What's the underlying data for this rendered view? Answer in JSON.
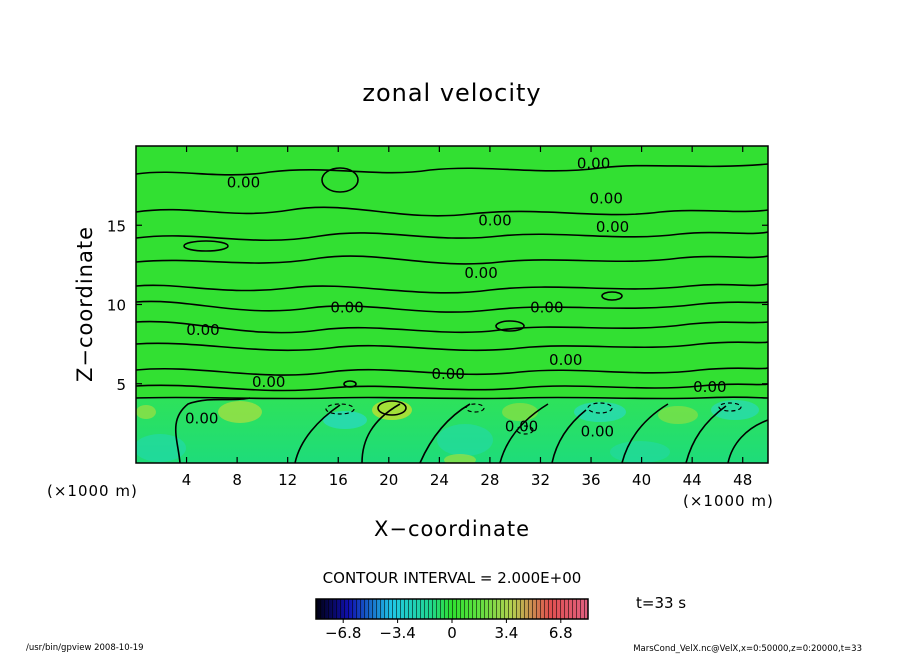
{
  "chart_data": {
    "type": "heatmap",
    "title": "zonal velocity",
    "xlabel": "X−coordinate",
    "ylabel": "Z−coordinate",
    "x_unit": "(×1000 m)",
    "y_unit": "(×1000 m)",
    "xlim": [
      0,
      50
    ],
    "ylim": [
      0,
      20
    ],
    "x_ticks": [
      4,
      8,
      12,
      16,
      20,
      24,
      28,
      32,
      36,
      40,
      44,
      48
    ],
    "y_ticks": [
      5,
      10,
      15
    ],
    "contour_interval": "CONTOUR INTERVAL = 2.000E+00",
    "time_label": "t=33 s",
    "colorbar": {
      "ticks": [
        "−6.8",
        "−3.4",
        "0",
        "3.4",
        "6.8"
      ],
      "range": [
        -6.8,
        6.8
      ]
    },
    "contour_labels": [
      {
        "x": 8.5,
        "z": 17.7,
        "text": "0.00"
      },
      {
        "x": 36.2,
        "z": 18.9,
        "text": "0.00"
      },
      {
        "x": 37.2,
        "z": 16.7,
        "text": "0.00"
      },
      {
        "x": 28.4,
        "z": 15.3,
        "text": "0.00"
      },
      {
        "x": 37.7,
        "z": 14.9,
        "text": "0.00"
      },
      {
        "x": 27.3,
        "z": 12.0,
        "text": "0.00"
      },
      {
        "x": 16.7,
        "z": 9.8,
        "text": "0.00"
      },
      {
        "x": 32.5,
        "z": 9.8,
        "text": "0.00"
      },
      {
        "x": 5.3,
        "z": 8.4,
        "text": "0.00"
      },
      {
        "x": 34.0,
        "z": 6.5,
        "text": "0.00"
      },
      {
        "x": 24.7,
        "z": 5.6,
        "text": "0.00"
      },
      {
        "x": 10.5,
        "z": 5.1,
        "text": "0.00"
      },
      {
        "x": 45.4,
        "z": 4.8,
        "text": "0.00"
      },
      {
        "x": 5.2,
        "z": 2.8,
        "text": "0.00"
      },
      {
        "x": 30.5,
        "z": 2.3,
        "text": "0.00"
      },
      {
        "x": 36.5,
        "z": 2.0,
        "text": "0.00"
      }
    ]
  },
  "footer": {
    "left": "/usr/bin/gpview   2008-10-19",
    "right": "MarsCond_VelX.nc@VelX,x=0:50000,z=0:20000,t=33"
  }
}
